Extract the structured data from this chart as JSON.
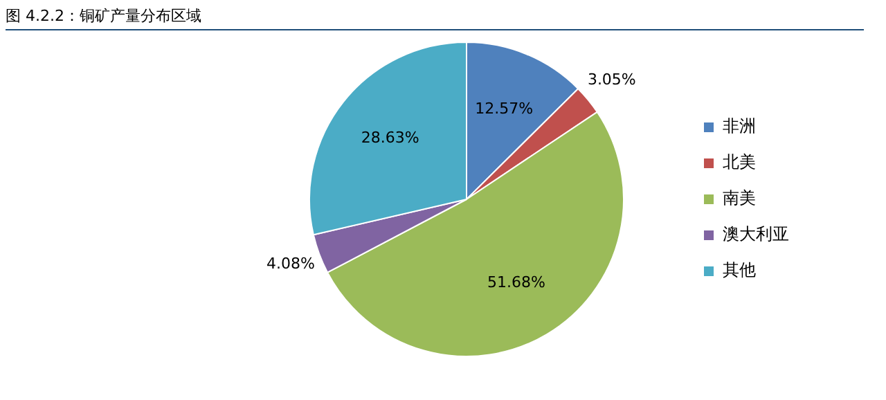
{
  "chart_data": {
    "type": "pie",
    "title": "图 4.2.2：铜矿产量分布区域",
    "categories": [
      "非洲",
      "北美",
      "南美",
      "澳大利亚",
      "其他"
    ],
    "values": [
      12.57,
      3.05,
      51.68,
      4.08,
      28.63
    ],
    "value_labels": [
      "12.57%",
      "3.05%",
      "51.68%",
      "4.08%",
      "28.63%"
    ],
    "colors": [
      "#4f81bd",
      "#c0504d",
      "#9bbb59",
      "#8064a2",
      "#4bacc6"
    ],
    "legend": "right"
  }
}
